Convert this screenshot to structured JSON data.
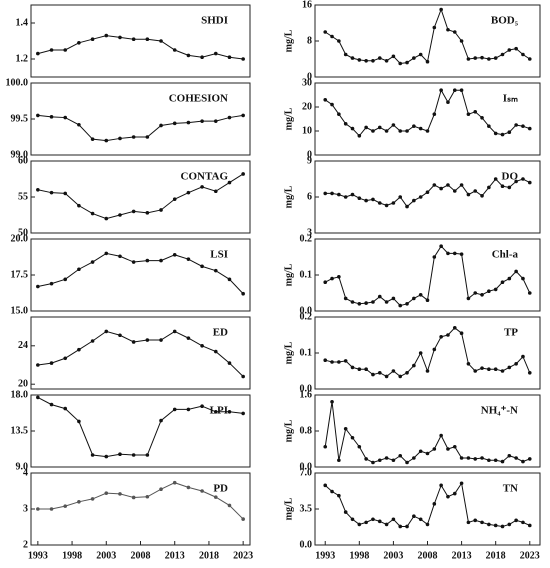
{
  "chart_data": [
    {
      "type": "line",
      "title": "SHDI",
      "color": "#111",
      "x": [
        1993,
        1995,
        1997,
        1999,
        2001,
        2003,
        2005,
        2007,
        2009,
        2011,
        2013,
        2015,
        2017,
        2019,
        2021,
        2023
      ],
      "values": [
        1.23,
        1.25,
        1.25,
        1.29,
        1.31,
        1.33,
        1.32,
        1.31,
        1.31,
        1.3,
        1.25,
        1.22,
        1.21,
        1.23,
        1.21,
        1.2
      ],
      "xlim": [
        1992,
        2024
      ],
      "ylim": [
        1.1,
        1.5
      ],
      "yticks": [
        1.2,
        1.4
      ]
    },
    {
      "type": "line",
      "title": "COHESION",
      "color": "#111",
      "x": [
        1993,
        1995,
        1997,
        1999,
        2001,
        2003,
        2005,
        2007,
        2009,
        2011,
        2013,
        2015,
        2017,
        2019,
        2021,
        2023
      ],
      "values": [
        99.55,
        99.53,
        99.52,
        99.42,
        99.22,
        99.2,
        99.23,
        99.25,
        99.25,
        99.41,
        99.44,
        99.45,
        99.47,
        99.47,
        99.52,
        99.55
      ],
      "xlim": [
        1992,
        2024
      ],
      "ylim": [
        99.0,
        100.0
      ],
      "yticks": [
        {
          "value": 99.0,
          "label": "99.0"
        },
        99.5,
        {
          "value": 100.0,
          "label": "100.0"
        }
      ]
    },
    {
      "type": "line",
      "title": "CONTAG",
      "color": "#111",
      "x": [
        1993,
        1995,
        1997,
        1999,
        2001,
        2003,
        2005,
        2007,
        2009,
        2011,
        2013,
        2015,
        2017,
        2019,
        2021,
        2023
      ],
      "values": [
        56,
        55.6,
        55.5,
        53.8,
        52.7,
        52,
        52.5,
        53,
        52.8,
        53.2,
        54.7,
        55.6,
        56.4,
        55.8,
        57,
        58.2
      ],
      "xlim": [
        1992,
        2024
      ],
      "ylim": [
        50,
        60
      ],
      "yticks": [
        50,
        55,
        60
      ]
    },
    {
      "type": "line",
      "title": "LSI",
      "color": "#111",
      "x": [
        1993,
        1995,
        1997,
        1999,
        2001,
        2003,
        2005,
        2007,
        2009,
        2011,
        2013,
        2015,
        2017,
        2019,
        2021,
        2023
      ],
      "values": [
        16.7,
        16.9,
        17.2,
        17.9,
        18.4,
        19.0,
        18.8,
        18.4,
        18.5,
        18.5,
        18.9,
        18.6,
        18.1,
        17.8,
        17.2,
        16.2
      ],
      "xlim": [
        1992,
        2024
      ],
      "ylim": [
        15,
        20
      ],
      "yticks": [
        {
          "value": 15,
          "label": "15.0"
        },
        17.5,
        {
          "value": 20,
          "label": "20.0"
        }
      ]
    },
    {
      "type": "line",
      "title": "ED",
      "color": "#111",
      "x": [
        1993,
        1995,
        1997,
        1999,
        2001,
        2003,
        2005,
        2007,
        2009,
        2011,
        2013,
        2015,
        2017,
        2019,
        2021,
        2023
      ],
      "values": [
        22.0,
        22.2,
        22.7,
        23.6,
        24.5,
        25.5,
        25.1,
        24.4,
        24.6,
        24.6,
        25.5,
        24.8,
        24.0,
        23.4,
        22.2,
        20.8
      ],
      "xlim": [
        1992,
        2024
      ],
      "ylim": [
        19.5,
        27
      ],
      "yticks": [
        20,
        24
      ]
    },
    {
      "type": "line",
      "title": "LPI",
      "color": "#111",
      "x": [
        1993,
        1995,
        1997,
        1999,
        2001,
        2003,
        2005,
        2007,
        2009,
        2011,
        2013,
        2015,
        2017,
        2019,
        2021,
        2023
      ],
      "values": [
        17.7,
        16.8,
        16.3,
        14.7,
        10.5,
        10.3,
        10.6,
        10.5,
        10.5,
        14.8,
        16.2,
        16.2,
        16.6,
        15.9,
        15.9,
        15.7
      ],
      "xlim": [
        1992,
        2024
      ],
      "ylim": [
        9,
        18
      ],
      "yticks": [
        {
          "value": 9,
          "label": "9.0"
        },
        13.5,
        {
          "value": 18,
          "label": "18.0"
        }
      ]
    },
    {
      "type": "line",
      "title": "PD",
      "color": "#555",
      "x": [
        1993,
        1995,
        1997,
        1999,
        2001,
        2003,
        2005,
        2007,
        2009,
        2011,
        2013,
        2015,
        2017,
        2019,
        2021,
        2023
      ],
      "values": [
        3.0,
        3.0,
        3.08,
        3.2,
        3.28,
        3.44,
        3.42,
        3.32,
        3.34,
        3.55,
        3.73,
        3.6,
        3.5,
        3.33,
        3.1,
        2.72
      ],
      "xlim": [
        1992,
        2024
      ],
      "ylim": [
        2,
        4
      ],
      "yticks": [
        2,
        3,
        4
      ],
      "xticks": [
        1993,
        1998,
        2003,
        2008,
        2013,
        2018,
        2023
      ]
    },
    {
      "type": "line",
      "title": "BOD₅",
      "ylabel": "mg/L",
      "color": "#111",
      "x": [
        1993,
        1994,
        1995,
        1996,
        1997,
        1998,
        1999,
        2000,
        2001,
        2002,
        2003,
        2004,
        2005,
        2006,
        2007,
        2008,
        2009,
        2010,
        2011,
        2012,
        2013,
        2014,
        2015,
        2016,
        2017,
        2018,
        2019,
        2020,
        2021,
        2022,
        2023
      ],
      "values": [
        10,
        9,
        8,
        5,
        4.2,
        3.8,
        3.6,
        3.6,
        4.2,
        3.6,
        4.6,
        3,
        3.2,
        4.2,
        5,
        3.4,
        11,
        15,
        10.5,
        10,
        8,
        4,
        4.2,
        4.3,
        4,
        4.2,
        5,
        6,
        6.3,
        5,
        4
      ],
      "xlim": [
        1991.5,
        2024.5
      ],
      "ylim": [
        0,
        16
      ],
      "yticks": [
        0,
        8,
        16
      ]
    },
    {
      "type": "line",
      "title": "Iₛₘ",
      "ylabel": "mg/L",
      "color": "#111",
      "x": [
        1993,
        1994,
        1995,
        1996,
        1997,
        1998,
        1999,
        2000,
        2001,
        2002,
        2003,
        2004,
        2005,
        2006,
        2007,
        2008,
        2009,
        2010,
        2011,
        2012,
        2013,
        2014,
        2015,
        2016,
        2017,
        2018,
        2019,
        2020,
        2021,
        2022,
        2023
      ],
      "values": [
        23,
        21,
        17,
        13,
        11,
        8,
        11.5,
        10,
        11.5,
        10,
        12.5,
        10,
        10,
        12,
        11,
        10,
        17,
        27,
        22,
        27,
        27,
        17,
        18,
        15.5,
        12,
        9,
        8.5,
        9.5,
        12.5,
        12,
        11
      ],
      "xlim": [
        1991.5,
        2024.5
      ],
      "ylim": [
        0,
        30
      ],
      "yticks": [
        0,
        10,
        20,
        30
      ]
    },
    {
      "type": "line",
      "title": "DO",
      "ylabel": "mg/L",
      "color": "#111",
      "x": [
        1993,
        1994,
        1995,
        1996,
        1997,
        1998,
        1999,
        2000,
        2001,
        2002,
        2003,
        2004,
        2005,
        2006,
        2007,
        2008,
        2009,
        2010,
        2011,
        2012,
        2013,
        2014,
        2015,
        2016,
        2017,
        2018,
        2019,
        2020,
        2021,
        2022,
        2023
      ],
      "values": [
        6.3,
        6.3,
        6.2,
        6.0,
        6.2,
        5.9,
        5.7,
        5.8,
        5.5,
        5.3,
        5.5,
        6.0,
        5.2,
        5.7,
        6.0,
        6.4,
        7.0,
        6.7,
        7.0,
        6.5,
        7.0,
        6.2,
        6.5,
        6.1,
        6.8,
        7.5,
        6.9,
        6.8,
        7.3,
        7.5,
        7.2
      ],
      "xlim": [
        1991.5,
        2024.5
      ],
      "ylim": [
        3,
        9
      ],
      "yticks": [
        3,
        6,
        9
      ]
    },
    {
      "type": "line",
      "title": "Chl-a",
      "ylabel": "mg/L",
      "color": "#111",
      "x": [
        1993,
        1994,
        1995,
        1996,
        1997,
        1998,
        1999,
        2000,
        2001,
        2002,
        2003,
        2004,
        2005,
        2006,
        2007,
        2008,
        2009,
        2010,
        2011,
        2012,
        2013,
        2014,
        2015,
        2016,
        2017,
        2018,
        2019,
        2020,
        2021,
        2022,
        2023
      ],
      "values": [
        0.08,
        0.09,
        0.095,
        0.035,
        0.025,
        0.02,
        0.022,
        0.025,
        0.04,
        0.025,
        0.035,
        0.015,
        0.02,
        0.035,
        0.045,
        0.03,
        0.15,
        0.18,
        0.16,
        0.16,
        0.158,
        0.035,
        0.05,
        0.045,
        0.055,
        0.06,
        0.08,
        0.09,
        0.11,
        0.09,
        0.05
      ],
      "xlim": [
        1991.5,
        2024.5
      ],
      "ylim": [
        0,
        0.2
      ],
      "yticks": [
        {
          "value": 0,
          "label": "0.0"
        },
        0.1,
        0.2
      ]
    },
    {
      "type": "line",
      "title": "TP",
      "ylabel": "mg/L",
      "color": "#111",
      "x": [
        1993,
        1994,
        1995,
        1996,
        1997,
        1998,
        1999,
        2000,
        2001,
        2002,
        2003,
        2004,
        2005,
        2006,
        2007,
        2008,
        2009,
        2010,
        2011,
        2012,
        2013,
        2014,
        2015,
        2016,
        2017,
        2018,
        2019,
        2020,
        2021,
        2022,
        2023
      ],
      "values": [
        0.08,
        0.075,
        0.075,
        0.078,
        0.06,
        0.055,
        0.055,
        0.04,
        0.045,
        0.035,
        0.05,
        0.035,
        0.045,
        0.065,
        0.1,
        0.05,
        0.11,
        0.145,
        0.15,
        0.17,
        0.155,
        0.07,
        0.05,
        0.058,
        0.055,
        0.055,
        0.05,
        0.06,
        0.07,
        0.09,
        0.045
      ],
      "xlim": [
        1991.5,
        2024.5
      ],
      "ylim": [
        0,
        0.2
      ],
      "yticks": [
        {
          "value": 0,
          "label": "0.0"
        },
        0.1,
        0.2
      ]
    },
    {
      "type": "line",
      "title": "NH₄⁺-N",
      "ylabel": "mg/L",
      "color": "#111",
      "x": [
        1993,
        1994,
        1995,
        1996,
        1997,
        1998,
        1999,
        2000,
        2001,
        2002,
        2003,
        2004,
        2005,
        2006,
        2007,
        2008,
        2009,
        2010,
        2011,
        2012,
        2013,
        2014,
        2015,
        2016,
        2017,
        2018,
        2019,
        2020,
        2021,
        2022,
        2023
      ],
      "values": [
        0.45,
        1.45,
        0.15,
        0.85,
        0.65,
        0.45,
        0.18,
        0.1,
        0.15,
        0.2,
        0.15,
        0.25,
        0.1,
        0.2,
        0.35,
        0.3,
        0.4,
        0.7,
        0.4,
        0.45,
        0.2,
        0.2,
        0.18,
        0.2,
        0.15,
        0.15,
        0.12,
        0.25,
        0.2,
        0.12,
        0.18
      ],
      "xlim": [
        1991.5,
        2024.5
      ],
      "ylim": [
        0,
        1.6
      ],
      "yticks": [
        {
          "value": 0,
          "label": "0.0"
        },
        0.8,
        1.6
      ]
    },
    {
      "type": "line",
      "title": "TN",
      "ylabel": "mg/L",
      "color": "#111",
      "x": [
        1993,
        1994,
        1995,
        1996,
        1997,
        1998,
        1999,
        2000,
        2001,
        2002,
        2003,
        2004,
        2005,
        2006,
        2007,
        2008,
        2009,
        2010,
        2011,
        2012,
        2013,
        2014,
        2015,
        2016,
        2017,
        2018,
        2019,
        2020,
        2021,
        2022,
        2023
      ],
      "values": [
        5.8,
        5.2,
        4.8,
        3.2,
        2.5,
        2.0,
        2.2,
        2.5,
        2.3,
        2.0,
        2.5,
        1.8,
        1.8,
        2.8,
        2.5,
        2.0,
        4.0,
        5.8,
        4.7,
        5.0,
        6.0,
        2.2,
        2.4,
        2.2,
        2.0,
        1.9,
        1.8,
        2.0,
        2.4,
        2.2,
        1.9
      ],
      "xlim": [
        1991.5,
        2024.5
      ],
      "ylim": [
        0,
        7
      ],
      "yticks": [
        {
          "value": 0,
          "label": "0.0"
        },
        3.5,
        {
          "value": 7,
          "label": "7.0"
        }
      ],
      "xticks": [
        1993,
        1998,
        2003,
        2008,
        2013,
        2018,
        2023
      ]
    }
  ]
}
